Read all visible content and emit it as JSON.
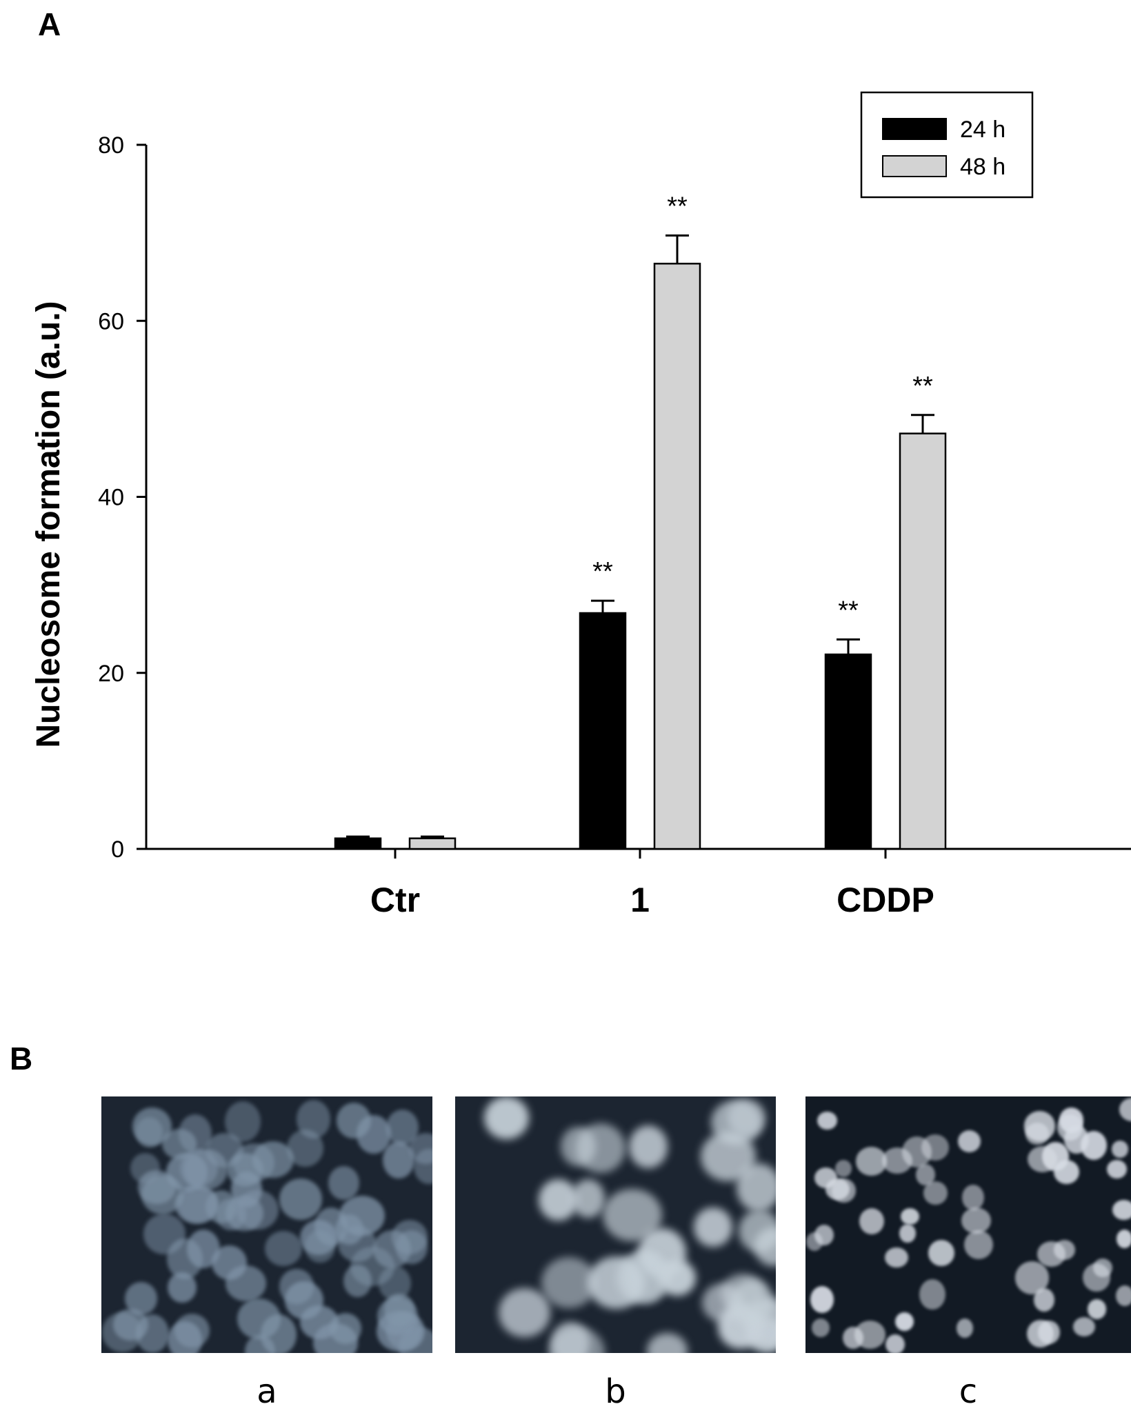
{
  "panel_a_label": "A",
  "panel_b_label": "B",
  "chart_data": {
    "type": "bar",
    "title": "",
    "xlabel": "",
    "ylabel": "Nucleosome formation (a.u.)",
    "ylim": [
      0,
      80
    ],
    "yticks": [
      0,
      20,
      40,
      60,
      80
    ],
    "grid": false,
    "legend_position": "top-right",
    "categories": [
      "Ctr",
      "1",
      "CDDP"
    ],
    "series": [
      {
        "name": "24 h",
        "color": "#000000",
        "values": [
          1.2,
          26.8,
          22.1
        ],
        "errors": [
          0.2,
          1.4,
          1.7
        ]
      },
      {
        "name": "48 h",
        "color": "#d3d3d3",
        "values": [
          1.2,
          66.5,
          47.2
        ],
        "errors": [
          0.2,
          3.2,
          2.1
        ]
      }
    ],
    "annotations": [
      {
        "category": "1",
        "series": "24 h",
        "text": "**"
      },
      {
        "category": "1",
        "series": "48 h",
        "text": "**"
      },
      {
        "category": "CDDP",
        "series": "24 h",
        "text": "**"
      },
      {
        "category": "CDDP",
        "series": "48 h",
        "text": "**"
      }
    ]
  },
  "micrographs": [
    {
      "label": "a"
    },
    {
      "label": "b"
    },
    {
      "label": "c"
    }
  ]
}
